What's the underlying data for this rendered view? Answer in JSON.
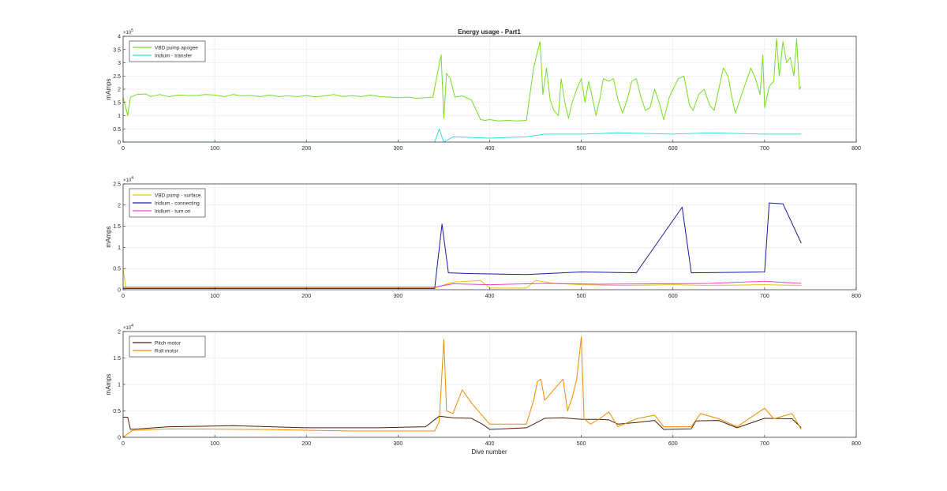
{
  "figure": {
    "title": "Energy usage - Part1",
    "xlabel": "Dive number"
  },
  "chart_data": [
    {
      "type": "line",
      "title": "Energy usage - Part1",
      "xlabel": "",
      "ylabel": "mAmps",
      "exponent_label": "×10^5",
      "xlim": [
        0,
        800
      ],
      "ylim": [
        0,
        400000
      ],
      "xticks": [
        0,
        100,
        200,
        300,
        400,
        500,
        600,
        700,
        800
      ],
      "yticks": [
        0,
        50000,
        100000,
        150000,
        200000,
        250000,
        300000,
        350000,
        400000
      ],
      "ytick_labels": [
        "0",
        "0.5",
        "1",
        "1.5",
        "2",
        "2.5",
        "3",
        "3.5",
        "4"
      ],
      "grid": true,
      "legend_location": "top-left",
      "series": [
        {
          "name": "VBD pump apogee",
          "color": "#77dd22",
          "points": [
            [
              0,
              170000
            ],
            [
              5,
              100000
            ],
            [
              8,
              170000
            ],
            [
              15,
              180000
            ],
            [
              25,
              182000
            ],
            [
              30,
              172000
            ],
            [
              40,
              180000
            ],
            [
              50,
              172000
            ],
            [
              60,
              178000
            ],
            [
              70,
              176000
            ],
            [
              80,
              176000
            ],
            [
              90,
              180000
            ],
            [
              100,
              178000
            ],
            [
              110,
              172000
            ],
            [
              120,
              180000
            ],
            [
              130,
              175000
            ],
            [
              140,
              176000
            ],
            [
              150,
              172000
            ],
            [
              160,
              178000
            ],
            [
              170,
              172000
            ],
            [
              180,
              175000
            ],
            [
              190,
              172000
            ],
            [
              200,
              176000
            ],
            [
              210,
              171000
            ],
            [
              220,
              175000
            ],
            [
              230,
              180000
            ],
            [
              240,
              172000
            ],
            [
              250,
              176000
            ],
            [
              260,
              172000
            ],
            [
              270,
              178000
            ],
            [
              280,
              172000
            ],
            [
              290,
              170000
            ],
            [
              300,
              168000
            ],
            [
              310,
              170000
            ],
            [
              320,
              166000
            ],
            [
              330,
              168000
            ],
            [
              338,
              170000
            ],
            [
              343,
              260000
            ],
            [
              347,
              330000
            ],
            [
              350,
              90000
            ],
            [
              353,
              260000
            ],
            [
              357,
              240000
            ],
            [
              362,
              170000
            ],
            [
              370,
              175000
            ],
            [
              380,
              160000
            ],
            [
              390,
              85000
            ],
            [
              395,
              82000
            ],
            [
              400,
              85000
            ],
            [
              410,
              80000
            ],
            [
              420,
              82000
            ],
            [
              430,
              80000
            ],
            [
              440,
              82000
            ],
            [
              448,
              280000
            ],
            [
              452,
              340000
            ],
            [
              455,
              380000
            ],
            [
              458,
              180000
            ],
            [
              462,
              280000
            ],
            [
              466,
              160000
            ],
            [
              470,
              120000
            ],
            [
              475,
              100000
            ],
            [
              478,
              240000
            ],
            [
              482,
              150000
            ],
            [
              486,
              90000
            ],
            [
              490,
              150000
            ],
            [
              495,
              200000
            ],
            [
              500,
              240000
            ],
            [
              504,
              150000
            ],
            [
              508,
              230000
            ],
            [
              512,
              170000
            ],
            [
              516,
              100000
            ],
            [
              520,
              160000
            ],
            [
              524,
              240000
            ],
            [
              530,
              230000
            ],
            [
              535,
              240000
            ],
            [
              540,
              160000
            ],
            [
              545,
              110000
            ],
            [
              550,
              160000
            ],
            [
              555,
              230000
            ],
            [
              560,
              240000
            ],
            [
              565,
              170000
            ],
            [
              570,
              120000
            ],
            [
              575,
              130000
            ],
            [
              580,
              200000
            ],
            [
              585,
              150000
            ],
            [
              590,
              85000
            ],
            [
              596,
              170000
            ],
            [
              600,
              200000
            ],
            [
              606,
              240000
            ],
            [
              612,
              250000
            ],
            [
              618,
              140000
            ],
            [
              622,
              120000
            ],
            [
              628,
              180000
            ],
            [
              634,
              200000
            ],
            [
              640,
              140000
            ],
            [
              645,
              120000
            ],
            [
              650,
              200000
            ],
            [
              655,
              280000
            ],
            [
              660,
              250000
            ],
            [
              665,
              160000
            ],
            [
              668,
              110000
            ],
            [
              672,
              150000
            ],
            [
              675,
              180000
            ],
            [
              680,
              230000
            ],
            [
              685,
              280000
            ],
            [
              690,
              240000
            ],
            [
              695,
              180000
            ],
            [
              698,
              330000
            ],
            [
              700,
              130000
            ],
            [
              705,
              210000
            ],
            [
              710,
              230000
            ],
            [
              713,
              390000
            ],
            [
              716,
              250000
            ],
            [
              720,
              380000
            ],
            [
              724,
              300000
            ],
            [
              728,
              320000
            ],
            [
              732,
              250000
            ],
            [
              735,
              390000
            ],
            [
              738,
              200000
            ],
            [
              740,
              210000
            ]
          ]
        },
        {
          "name": "Iridium - transfer",
          "color": "#33dddd",
          "points": [
            [
              0,
              0
            ],
            [
              340,
              0
            ],
            [
              345,
              50000
            ],
            [
              350,
              0
            ],
            [
              360,
              20000
            ],
            [
              400,
              15000
            ],
            [
              440,
              20000
            ],
            [
              460,
              30000
            ],
            [
              500,
              30000
            ],
            [
              540,
              35000
            ],
            [
              600,
              30000
            ],
            [
              640,
              35000
            ],
            [
              700,
              30000
            ],
            [
              740,
              30000
            ]
          ]
        }
      ]
    },
    {
      "type": "line",
      "xlabel": "",
      "ylabel": "mAmps",
      "exponent_label": "×10^4",
      "xlim": [
        0,
        800
      ],
      "ylim": [
        0,
        25000
      ],
      "xticks": [
        0,
        100,
        200,
        300,
        400,
        500,
        600,
        700,
        800
      ],
      "yticks": [
        0,
        5000,
        10000,
        15000,
        20000,
        25000
      ],
      "ytick_labels": [
        "0",
        "0.5",
        "1",
        "1.5",
        "2",
        "2.5"
      ],
      "grid": true,
      "legend_location": "top-left",
      "series": [
        {
          "name": "VBD pump - surface",
          "color": "#e6c800",
          "points": [
            [
              0,
              5000
            ],
            [
              3,
              400
            ],
            [
              340,
              400
            ],
            [
              360,
              1800
            ],
            [
              390,
              2200
            ],
            [
              400,
              400
            ],
            [
              440,
              400
            ],
            [
              450,
              2200
            ],
            [
              470,
              1500
            ],
            [
              500,
              1200
            ],
            [
              540,
              1000
            ],
            [
              600,
              1200
            ],
            [
              640,
              1000
            ],
            [
              700,
              1200
            ],
            [
              740,
              1000
            ]
          ]
        },
        {
          "name": "Iridium - connecting",
          "color": "#1a1aa0",
          "points": [
            [
              0,
              300
            ],
            [
              340,
              300
            ],
            [
              348,
              15500
            ],
            [
              355,
              4000
            ],
            [
              380,
              3800
            ],
            [
              440,
              3600
            ],
            [
              500,
              4200
            ],
            [
              560,
              4000
            ],
            [
              610,
              19500
            ],
            [
              620,
              4000
            ],
            [
              700,
              4200
            ],
            [
              705,
              20500
            ],
            [
              720,
              20300
            ],
            [
              740,
              11000
            ]
          ]
        },
        {
          "name": "Iridium - turn on",
          "color": "#ee44cc",
          "points": [
            [
              0,
              600
            ],
            [
              340,
              600
            ],
            [
              360,
              1400
            ],
            [
              400,
              1200
            ],
            [
              460,
              1500
            ],
            [
              520,
              1300
            ],
            [
              580,
              1400
            ],
            [
              640,
              1500
            ],
            [
              700,
              2000
            ],
            [
              740,
              1500
            ]
          ]
        }
      ]
    },
    {
      "type": "line",
      "xlabel": "Dive number",
      "ylabel": "mAmps",
      "exponent_label": "×10^4",
      "xlim": [
        0,
        800
      ],
      "ylim": [
        0,
        20000
      ],
      "xticks": [
        0,
        100,
        200,
        300,
        400,
        500,
        600,
        700,
        800
      ],
      "yticks": [
        0,
        5000,
        10000,
        15000,
        20000
      ],
      "ytick_labels": [
        "0",
        "0.5",
        "1",
        "1.5",
        "2"
      ],
      "grid": true,
      "legend_location": "top-left",
      "series": [
        {
          "name": "Pitch motor",
          "color": "#4a1f0a",
          "points": [
            [
              0,
              3800
            ],
            [
              5,
              3800
            ],
            [
              8,
              1500
            ],
            [
              50,
              2000
            ],
            [
              120,
              2200
            ],
            [
              200,
              1800
            ],
            [
              280,
              1800
            ],
            [
              330,
              2000
            ],
            [
              345,
              4000
            ],
            [
              360,
              3700
            ],
            [
              380,
              3600
            ],
            [
              392,
              2500
            ],
            [
              400,
              1500
            ],
            [
              440,
              1800
            ],
            [
              448,
              2500
            ],
            [
              460,
              3600
            ],
            [
              480,
              3700
            ],
            [
              500,
              3400
            ],
            [
              520,
              3400
            ],
            [
              530,
              3300
            ],
            [
              540,
              2500
            ],
            [
              560,
              2800
            ],
            [
              580,
              3200
            ],
            [
              590,
              1500
            ],
            [
              620,
              1600
            ],
            [
              625,
              3100
            ],
            [
              650,
              3200
            ],
            [
              670,
              1800
            ],
            [
              700,
              3600
            ],
            [
              730,
              3500
            ],
            [
              740,
              1800
            ]
          ]
        },
        {
          "name": "Roll motor",
          "color": "#f08c00",
          "points": [
            [
              0,
              0
            ],
            [
              10,
              1300
            ],
            [
              50,
              1600
            ],
            [
              150,
              1500
            ],
            [
              250,
              1200
            ],
            [
              340,
              1200
            ],
            [
              345,
              3000
            ],
            [
              350,
              18500
            ],
            [
              353,
              5000
            ],
            [
              360,
              4500
            ],
            [
              370,
              9000
            ],
            [
              380,
              6500
            ],
            [
              390,
              4500
            ],
            [
              400,
              2500
            ],
            [
              440,
              2500
            ],
            [
              448,
              7000
            ],
            [
              452,
              10500
            ],
            [
              456,
              11000
            ],
            [
              460,
              7000
            ],
            [
              470,
              9000
            ],
            [
              480,
              11000
            ],
            [
              485,
              5000
            ],
            [
              490,
              7500
            ],
            [
              495,
              11000
            ],
            [
              500,
              19000
            ],
            [
              503,
              3500
            ],
            [
              510,
              2500
            ],
            [
              520,
              3500
            ],
            [
              530,
              4800
            ],
            [
              540,
              2000
            ],
            [
              560,
              3500
            ],
            [
              580,
              4200
            ],
            [
              590,
              2000
            ],
            [
              620,
              2000
            ],
            [
              630,
              4500
            ],
            [
              650,
              3500
            ],
            [
              670,
              2000
            ],
            [
              700,
              5500
            ],
            [
              710,
              3500
            ],
            [
              730,
              4500
            ],
            [
              740,
              1500
            ]
          ]
        }
      ]
    }
  ]
}
